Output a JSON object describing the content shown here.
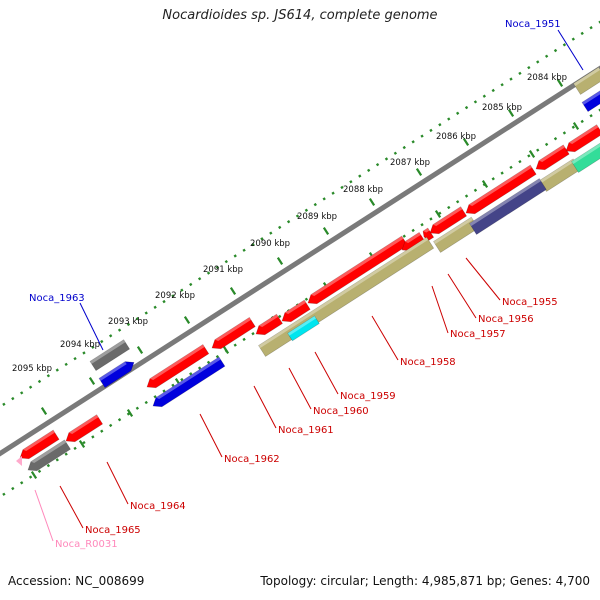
{
  "title": "Nocardioides sp. JS614, complete genome",
  "footer": {
    "accession": "Accession: NC_008699",
    "topology": "Topology: circular; Length: 4,985,871 bp; Genes: 4,700"
  },
  "colors": {
    "backbone": "#7a7a7a",
    "tick": "#2a8a2a",
    "gene_red": "#ff0000",
    "gene_blue": "#0000dd",
    "gene_gray": "#6a6a6a",
    "gene_tan": "#b8b070",
    "gene_navy": "#444488",
    "gene_cyan": "#00e5ee",
    "gene_green": "#33dd99",
    "label_red": "#cc0000",
    "label_blue": "#0000cc",
    "label_pink": "#ff88bb"
  },
  "scale": [
    {
      "label": "2084 kbp"
    },
    {
      "label": "2085 kbp"
    },
    {
      "label": "2086 kbp"
    },
    {
      "label": "2087 kbp"
    },
    {
      "label": "2088 kbp"
    },
    {
      "label": "2089 kbp"
    },
    {
      "label": "2090 kbp"
    },
    {
      "label": "2091 kbp"
    },
    {
      "label": "2092 kbp"
    },
    {
      "label": "2093 kbp"
    },
    {
      "label": "2094 kbp"
    },
    {
      "label": "2095 kbp"
    }
  ],
  "genes": [
    {
      "name": "Noca_1951",
      "color": "blue"
    },
    {
      "name": "Noca_1955",
      "color": "red"
    },
    {
      "name": "Noca_1956",
      "color": "red"
    },
    {
      "name": "Noca_1957",
      "color": "red"
    },
    {
      "name": "Noca_1958",
      "color": "red"
    },
    {
      "name": "Noca_1959",
      "color": "red"
    },
    {
      "name": "Noca_1960",
      "color": "red"
    },
    {
      "name": "Noca_1961",
      "color": "red"
    },
    {
      "name": "Noca_1962",
      "color": "red"
    },
    {
      "name": "Noca_1963",
      "color": "blue"
    },
    {
      "name": "Noca_1964",
      "color": "red"
    },
    {
      "name": "Noca_1965",
      "color": "red"
    },
    {
      "name": "Noca_R0031",
      "color": "pink"
    }
  ]
}
